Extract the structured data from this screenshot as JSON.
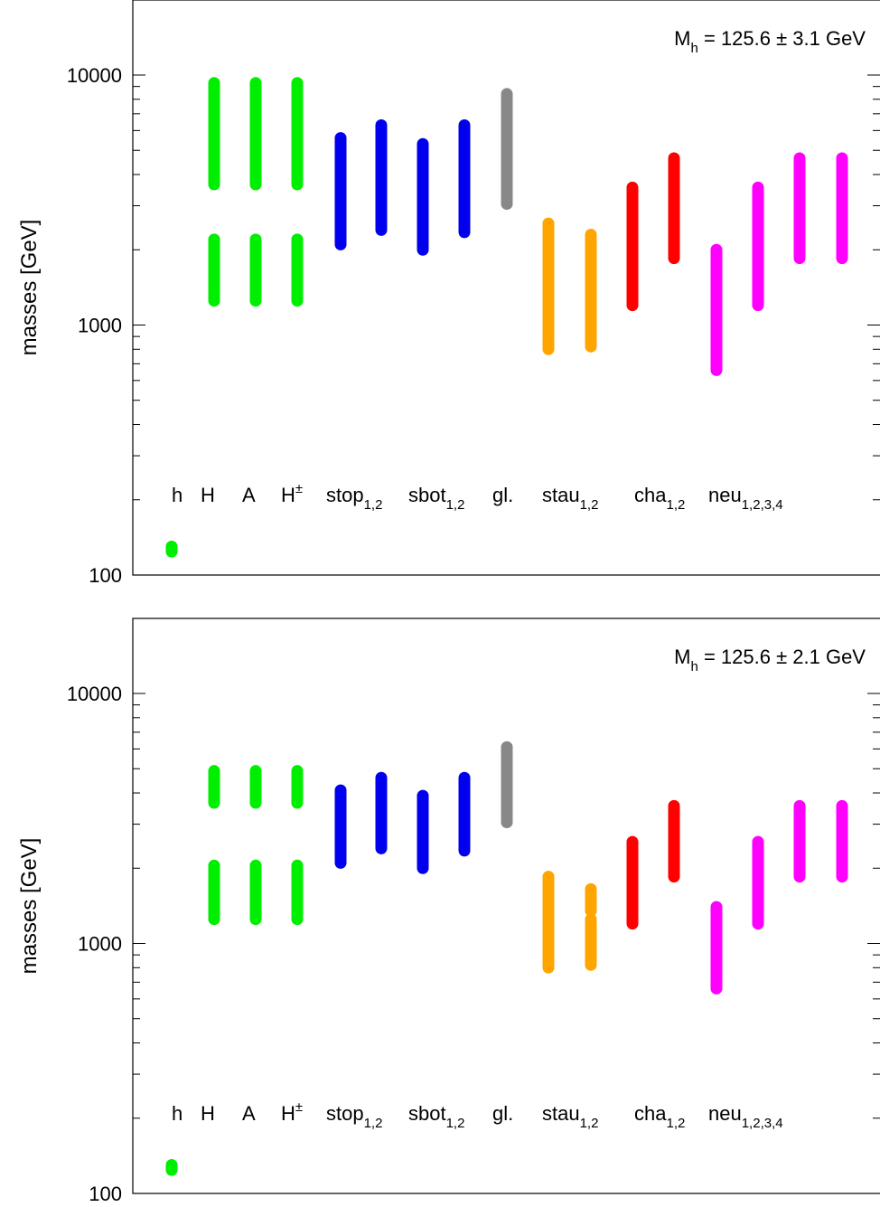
{
  "chart_data": [
    {
      "type": "scatter",
      "title": "",
      "annotation": {
        "main": "M",
        "sub": "h",
        "rest": " = 125.6 ± 3.1 GeV"
      },
      "ylabel": "masses [GeV]",
      "xlabel": "",
      "yscale": "log",
      "ylim": [
        100,
        17000
      ],
      "yticks": [
        100,
        1000,
        10000
      ],
      "ytick_labels": [
        "100",
        "1000",
        "10000"
      ],
      "grid": false,
      "particle_labels": [
        {
          "main": "h",
          "sub": "",
          "sup": ""
        },
        {
          "main": "H",
          "sub": "",
          "sup": ""
        },
        {
          "main": "A",
          "sub": "",
          "sup": ""
        },
        {
          "main": "H",
          "sub": "",
          "sup": "±"
        },
        {
          "main": "stop",
          "sub": "1,2",
          "sup": ""
        },
        {
          "main": "sbot",
          "sub": "1,2",
          "sup": ""
        },
        {
          "main": "gl.",
          "sub": "",
          "sup": ""
        },
        {
          "main": "stau",
          "sub": "1,2",
          "sup": ""
        },
        {
          "main": "cha",
          "sub": "1,2",
          "sup": ""
        },
        {
          "main": "neu",
          "sub": "1,2,3,4",
          "sup": ""
        }
      ],
      "series": [
        {
          "x": 1,
          "ranges": [
            [
              124,
              130
            ]
          ],
          "color": "#00ee00"
        },
        {
          "x": 2,
          "ranges": [
            [
              1250,
              2200
            ],
            [
              3650,
              9300
            ]
          ],
          "color": "#00ee00"
        },
        {
          "x": 3,
          "ranges": [
            [
              1250,
              2200
            ],
            [
              3650,
              9300
            ]
          ],
          "color": "#00ee00"
        },
        {
          "x": 4,
          "ranges": [
            [
              1250,
              2200
            ],
            [
              3650,
              9300
            ]
          ],
          "color": "#00ee00"
        },
        {
          "x": 5,
          "ranges": [
            [
              2100,
              5600
            ]
          ],
          "color": "#0000ee"
        },
        {
          "x": 6,
          "ranges": [
            [
              2400,
              6300
            ]
          ],
          "color": "#0000ee"
        },
        {
          "x": 7,
          "ranges": [
            [
              2000,
              5300
            ]
          ],
          "color": "#0000ee"
        },
        {
          "x": 8,
          "ranges": [
            [
              2350,
              6300
            ]
          ],
          "color": "#0000ee"
        },
        {
          "x": 9,
          "ranges": [
            [
              3050,
              8400
            ]
          ],
          "color": "#888888"
        },
        {
          "x": 10,
          "ranges": [
            [
              800,
              2550
            ]
          ],
          "color": "#ffa500"
        },
        {
          "x": 11,
          "ranges": [
            [
              820,
              2300
            ]
          ],
          "color": "#ffa500"
        },
        {
          "x": 12,
          "ranges": [
            [
              1200,
              3550
            ]
          ],
          "color": "#ff0000"
        },
        {
          "x": 13,
          "ranges": [
            [
              1850,
              4650
            ]
          ],
          "color": "#ff0000"
        },
        {
          "x": 14,
          "ranges": [
            [
              660,
              2000
            ]
          ],
          "color": "#ff00ff"
        },
        {
          "x": 15,
          "ranges": [
            [
              1200,
              3550
            ]
          ],
          "color": "#ff00ff"
        },
        {
          "x": 16,
          "ranges": [
            [
              1850,
              4650
            ]
          ],
          "color": "#ff00ff"
        },
        {
          "x": 17,
          "ranges": [
            [
              1850,
              4650
            ]
          ],
          "color": "#ff00ff"
        }
      ]
    },
    {
      "type": "scatter",
      "title": "",
      "annotation": {
        "main": "M",
        "sub": "h",
        "rest": " = 125.6 ± 2.1 GeV"
      },
      "ylabel": "masses [GeV]",
      "xlabel": "",
      "yscale": "log",
      "ylim": [
        100,
        17000
      ],
      "yticks": [
        100,
        1000,
        10000
      ],
      "ytick_labels": [
        "100",
        "1000",
        "10000"
      ],
      "grid": false,
      "particle_labels": [
        {
          "main": "h",
          "sub": "",
          "sup": ""
        },
        {
          "main": "H",
          "sub": "",
          "sup": ""
        },
        {
          "main": "A",
          "sub": "",
          "sup": ""
        },
        {
          "main": "H",
          "sub": "",
          "sup": "±"
        },
        {
          "main": "stop",
          "sub": "1,2",
          "sup": ""
        },
        {
          "main": "sbot",
          "sub": "1,2",
          "sup": ""
        },
        {
          "main": "gl.",
          "sub": "",
          "sup": ""
        },
        {
          "main": "stau",
          "sub": "1,2",
          "sup": ""
        },
        {
          "main": "cha",
          "sub": "1,2",
          "sup": ""
        },
        {
          "main": "neu",
          "sub": "1,2,3,4",
          "sup": ""
        }
      ],
      "series": [
        {
          "x": 1,
          "ranges": [
            [
              124,
              130
            ]
          ],
          "color": "#00ee00"
        },
        {
          "x": 2,
          "ranges": [
            [
              1250,
              2050
            ],
            [
              3650,
              4900
            ]
          ],
          "color": "#00ee00"
        },
        {
          "x": 3,
          "ranges": [
            [
              1250,
              2050
            ],
            [
              3650,
              4900
            ]
          ],
          "color": "#00ee00"
        },
        {
          "x": 4,
          "ranges": [
            [
              1250,
              2050
            ],
            [
              3650,
              4900
            ]
          ],
          "color": "#00ee00"
        },
        {
          "x": 5,
          "ranges": [
            [
              2100,
              4100
            ]
          ],
          "color": "#0000ee"
        },
        {
          "x": 6,
          "ranges": [
            [
              2400,
              4600
            ]
          ],
          "color": "#0000ee"
        },
        {
          "x": 7,
          "ranges": [
            [
              2000,
              3900
            ]
          ],
          "color": "#0000ee"
        },
        {
          "x": 8,
          "ranges": [
            [
              2350,
              4600
            ]
          ],
          "color": "#0000ee"
        },
        {
          "x": 9,
          "ranges": [
            [
              3050,
              6100
            ]
          ],
          "color": "#888888"
        },
        {
          "x": 10,
          "ranges": [
            [
              800,
              1850
            ]
          ],
          "color": "#ffa500"
        },
        {
          "x": 11,
          "ranges": [
            [
              820,
              1250
            ],
            [
              1350,
              1650
            ]
          ],
          "color": "#ffa500"
        },
        {
          "x": 12,
          "ranges": [
            [
              1200,
              2550
            ]
          ],
          "color": "#ff0000"
        },
        {
          "x": 13,
          "ranges": [
            [
              1850,
              3550
            ]
          ],
          "color": "#ff0000"
        },
        {
          "x": 14,
          "ranges": [
            [
              660,
              1400
            ]
          ],
          "color": "#ff00ff"
        },
        {
          "x": 15,
          "ranges": [
            [
              1200,
              2550
            ]
          ],
          "color": "#ff00ff"
        },
        {
          "x": 16,
          "ranges": [
            [
              1850,
              3550
            ]
          ],
          "color": "#ff00ff"
        },
        {
          "x": 17,
          "ranges": [
            [
              1850,
              3550
            ]
          ],
          "color": "#ff00ff"
        }
      ]
    }
  ]
}
